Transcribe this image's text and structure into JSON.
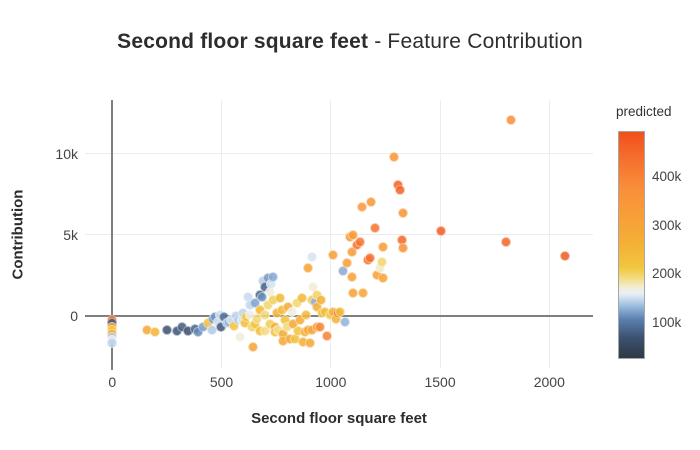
{
  "title": {
    "bold": "Second floor square feet",
    "regular": " - Feature Contribution"
  },
  "colors": {
    "background": "#ffffff",
    "grid": "#ececec",
    "zeroline": "#7f7f7f",
    "title_text": "#2d2d2d",
    "tick_text": "#444444"
  },
  "chart_data": {
    "type": "scatter",
    "title": "Second floor square feet - Feature Contribution",
    "xlabel": "Second floor square feet",
    "ylabel": "Contribution",
    "xlim": [
      -125,
      2200
    ],
    "ylim": [
      -3200,
      13300
    ],
    "grid": true,
    "x_ticks": {
      "values": [
        0,
        500,
        1000,
        1500,
        2000
      ],
      "labels": [
        "0",
        "500",
        "1000",
        "1500",
        "2000"
      ]
    },
    "y_ticks": {
      "values": [
        0,
        5000,
        10000
      ],
      "labels": [
        "0",
        "5k",
        "10k"
      ]
    },
    "zeroline_x": 0,
    "zeroline_y": 0,
    "colorbar": {
      "title": "predicted",
      "min": 25,
      "max": 495,
      "tick_values": [
        100,
        200,
        300,
        400
      ],
      "tick_labels": [
        "100k",
        "200k",
        "300k",
        "400k"
      ],
      "position": "right"
    },
    "colorscale": [
      [
        0.0,
        "#2f3845"
      ],
      [
        0.09,
        "#3c5170"
      ],
      [
        0.17,
        "#5a7fae"
      ],
      [
        0.22,
        "#8fb1d8"
      ],
      [
        0.26,
        "#c6daee"
      ],
      [
        0.285,
        "#e9eff7"
      ],
      [
        0.315,
        "#f3ecd2"
      ],
      [
        0.35,
        "#f3dd85"
      ],
      [
        0.4,
        "#f2c63f"
      ],
      [
        0.5,
        "#f4b136"
      ],
      [
        0.62,
        "#f7a037"
      ],
      [
        0.75,
        "#f98e3b"
      ],
      [
        0.88,
        "#f66f2d"
      ],
      [
        1.0,
        "#f0501c"
      ]
    ],
    "points": [
      [
        0,
        -215,
        450
      ],
      [
        0,
        -400,
        75
      ],
      [
        0,
        -645,
        300
      ],
      [
        0,
        -890,
        210
      ],
      [
        0,
        -1135,
        280
      ],
      [
        0,
        -1320,
        140
      ],
      [
        0,
        -1505,
        163
      ],
      [
        0,
        -1690,
        143
      ],
      [
        160,
        -830,
        290
      ],
      [
        197,
        -1010,
        250
      ],
      [
        252,
        -890,
        70
      ],
      [
        297,
        -950,
        72
      ],
      [
        320,
        -645,
        80
      ],
      [
        348,
        -950,
        65
      ],
      [
        380,
        -770,
        85
      ],
      [
        394,
        -1010,
        110
      ],
      [
        416,
        -705,
        120
      ],
      [
        439,
        -460,
        225
      ],
      [
        458,
        -830,
        140
      ],
      [
        462,
        -155,
        118
      ],
      [
        471,
        -30,
        115
      ],
      [
        485,
        -340,
        150
      ],
      [
        494,
        90,
        150
      ],
      [
        499,
        -645,
        75
      ],
      [
        513,
        -90,
        90
      ],
      [
        526,
        -460,
        138
      ],
      [
        535,
        -340,
        125
      ],
      [
        545,
        -215,
        152
      ],
      [
        558,
        -585,
        215
      ],
      [
        567,
        30,
        144
      ],
      [
        577,
        -275,
        142
      ],
      [
        586,
        -1320,
        170
      ],
      [
        595,
        -215,
        155
      ],
      [
        599,
        215,
        145
      ],
      [
        609,
        -400,
        230
      ],
      [
        613,
        -90,
        212
      ],
      [
        622,
        1195,
        148
      ],
      [
        632,
        90,
        165
      ],
      [
        632,
        705,
        146
      ],
      [
        641,
        -645,
        200
      ],
      [
        645,
        -1930,
        296
      ],
      [
        654,
        830,
        122
      ],
      [
        654,
        -520,
        220
      ],
      [
        663,
        -155,
        195
      ],
      [
        677,
        1320,
        78
      ],
      [
        677,
        400,
        240
      ],
      [
        677,
        -950,
        235
      ],
      [
        686,
        1195,
        112
      ],
      [
        691,
        2180,
        142
      ],
      [
        700,
        1810,
        82
      ],
      [
        700,
        -950,
        190
      ],
      [
        700,
        90,
        194
      ],
      [
        714,
        2360,
        118
      ],
      [
        714,
        705,
        198
      ],
      [
        723,
        1505,
        168
      ],
      [
        723,
        -520,
        205
      ],
      [
        728,
        1995,
        152
      ],
      [
        737,
        2425,
        125
      ],
      [
        737,
        1010,
        202
      ],
      [
        746,
        -645,
        270
      ],
      [
        746,
        -1010,
        232
      ],
      [
        755,
        215,
        265
      ],
      [
        760,
        -830,
        188
      ],
      [
        769,
        1135,
        245
      ],
      [
        778,
        400,
        238
      ],
      [
        782,
        -1135,
        275
      ],
      [
        782,
        -1565,
        285
      ],
      [
        792,
        -215,
        224
      ],
      [
        801,
        -645,
        192
      ],
      [
        805,
        585,
        278
      ],
      [
        814,
        -1440,
        300
      ],
      [
        824,
        275,
        166
      ],
      [
        828,
        -520,
        282
      ],
      [
        837,
        -1440,
        222
      ],
      [
        846,
        830,
        196
      ],
      [
        851,
        -950,
        218
      ],
      [
        860,
        -215,
        280
      ],
      [
        869,
        1135,
        242
      ],
      [
        874,
        -1625,
        268
      ],
      [
        883,
        -1010,
        272
      ],
      [
        888,
        90,
        240
      ],
      [
        897,
        2975,
        310
      ],
      [
        897,
        -830,
        288
      ],
      [
        906,
        -1690,
        290
      ],
      [
        915,
        3650,
        153
      ],
      [
        915,
        1010,
        208
      ],
      [
        915,
        -830,
        292
      ],
      [
        920,
        1810,
        172
      ],
      [
        929,
        890,
        128
      ],
      [
        938,
        1320,
        199
      ],
      [
        938,
        585,
        262
      ],
      [
        938,
        -705,
        305
      ],
      [
        952,
        -645,
        390
      ],
      [
        956,
        1010,
        265
      ],
      [
        961,
        215,
        226
      ],
      [
        975,
        275,
        236
      ],
      [
        984,
        -1260,
        400
      ],
      [
        998,
        90,
        203
      ],
      [
        1011,
        3775,
        315
      ],
      [
        1011,
        275,
        258
      ],
      [
        1025,
        -155,
        255
      ],
      [
        1034,
        215,
        420
      ],
      [
        1043,
        275,
        233
      ],
      [
        1057,
        2790,
        126
      ],
      [
        1066,
        -340,
        130
      ],
      [
        1075,
        3280,
        320
      ],
      [
        1089,
        4880,
        332
      ],
      [
        1098,
        3955,
        330
      ],
      [
        1098,
        2425,
        312
      ],
      [
        1103,
        5000,
        335
      ],
      [
        1103,
        1440,
        308
      ],
      [
        1121,
        4385,
        430
      ],
      [
        1135,
        4570,
        428
      ],
      [
        1144,
        6720,
        340
      ],
      [
        1148,
        1440,
        298
      ],
      [
        1171,
        3465,
        440
      ],
      [
        1180,
        3590,
        435
      ],
      [
        1185,
        7025,
        345
      ],
      [
        1203,
        5430,
        425
      ],
      [
        1212,
        2545,
        318
      ],
      [
        1226,
        2975,
        175
      ],
      [
        1235,
        3345,
        197
      ],
      [
        1240,
        4265,
        325
      ],
      [
        1240,
        2360,
        302
      ],
      [
        1290,
        9785,
        348
      ],
      [
        1309,
        8065,
        460
      ],
      [
        1318,
        7760,
        455
      ],
      [
        1327,
        4695,
        445
      ],
      [
        1331,
        6350,
        350
      ],
      [
        1331,
        4205,
        360
      ],
      [
        1505,
        5245,
        465
      ],
      [
        1803,
        4570,
        450
      ],
      [
        1826,
        12055,
        370
      ],
      [
        2073,
        3710,
        470
      ]
    ]
  }
}
